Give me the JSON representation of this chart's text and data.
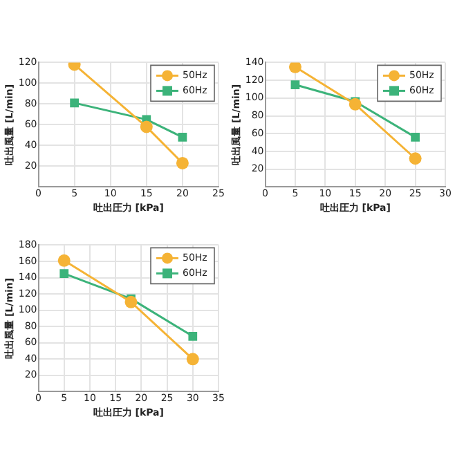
{
  "chart_data": [
    {
      "type": "line",
      "xlabel": "吐出圧力 [kPa]",
      "ylabel": "吐出風量 [L/min]",
      "xlim": [
        0,
        25
      ],
      "xticks": [
        0,
        5,
        10,
        15,
        20,
        25
      ],
      "ylim": [
        0,
        120
      ],
      "yticks": [
        20,
        40,
        60,
        80,
        100,
        120
      ],
      "grid": true,
      "legend": "top right",
      "series": [
        {
          "name": "50Hz",
          "color": "#f5b335",
          "marker": "circle",
          "x": [
            5,
            15,
            20
          ],
          "values": [
            118,
            58,
            23
          ]
        },
        {
          "name": "60Hz",
          "color": "#3cb37a",
          "marker": "square",
          "x": [
            5,
            15,
            20
          ],
          "values": [
            81,
            65,
            48
          ]
        }
      ]
    },
    {
      "type": "line",
      "xlabel": "吐出圧力 [kPa]",
      "ylabel": "吐出風量 [L/min]",
      "xlim": [
        0,
        30
      ],
      "xticks": [
        0,
        5,
        10,
        15,
        20,
        25,
        30
      ],
      "ylim": [
        0,
        140
      ],
      "yticks": [
        20,
        40,
        60,
        80,
        100,
        120,
        140
      ],
      "grid": true,
      "legend": "top right",
      "series": [
        {
          "name": "50Hz",
          "color": "#f5b335",
          "marker": "circle",
          "x": [
            5,
            15,
            25
          ],
          "values": [
            135,
            93,
            32
          ]
        },
        {
          "name": "60Hz",
          "color": "#3cb37a",
          "marker": "square",
          "x": [
            5,
            15,
            25
          ],
          "values": [
            115,
            96,
            56
          ]
        }
      ]
    },
    {
      "type": "line",
      "xlabel": "吐出圧力 [kPa]",
      "ylabel": "吐出風量 [L/min]",
      "xlim": [
        0,
        35
      ],
      "xticks": [
        0,
        5,
        10,
        15,
        20,
        25,
        30,
        35
      ],
      "ylim": [
        0,
        180
      ],
      "yticks": [
        20,
        40,
        60,
        80,
        100,
        120,
        140,
        160,
        180
      ],
      "grid": true,
      "legend": "top right",
      "series": [
        {
          "name": "50Hz",
          "color": "#f5b335",
          "marker": "circle",
          "x": [
            5,
            18,
            30
          ],
          "values": [
            161,
            110,
            40
          ]
        },
        {
          "name": "60Hz",
          "color": "#3cb37a",
          "marker": "square",
          "x": [
            5,
            18,
            30
          ],
          "values": [
            145,
            114,
            68
          ]
        }
      ]
    }
  ]
}
